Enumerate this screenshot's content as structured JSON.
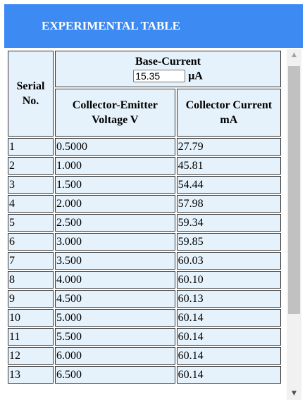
{
  "title": "EXPERIMENTAL TABLE",
  "headers": {
    "serial": "Serial No.",
    "base_current": "Base-Current",
    "base_current_unit": "μA",
    "voltage": "Collector-Emitter Voltage V",
    "current": "Collector Current mA"
  },
  "base_current_value": "15.35",
  "rows": [
    {
      "serial": "1",
      "voltage": "0.5000",
      "current": "27.79"
    },
    {
      "serial": "2",
      "voltage": "1.000",
      "current": "45.81"
    },
    {
      "serial": "3",
      "voltage": "1.500",
      "current": "54.44"
    },
    {
      "serial": "4",
      "voltage": "2.000",
      "current": "57.98"
    },
    {
      "serial": "5",
      "voltage": "2.500",
      "current": "59.34"
    },
    {
      "serial": "6",
      "voltage": "3.000",
      "current": "59.85"
    },
    {
      "serial": "7",
      "voltage": "3.500",
      "current": "60.03"
    },
    {
      "serial": "8",
      "voltage": "4.000",
      "current": "60.10"
    },
    {
      "serial": "9",
      "voltage": "4.500",
      "current": "60.13"
    },
    {
      "serial": "10",
      "voltage": "5.000",
      "current": "60.14"
    },
    {
      "serial": "11",
      "voltage": "5.500",
      "current": "60.14"
    },
    {
      "serial": "12",
      "voltage": "6.000",
      "current": "60.14"
    },
    {
      "serial": "13",
      "voltage": "6.500",
      "current": "60.14"
    }
  ],
  "icons": {
    "scroll_up": "scroll-up-arrow-icon",
    "scroll_down": "scroll-down-arrow-icon"
  },
  "colors": {
    "title_bar": "#3d8bf2",
    "cell_background": "#e6f2fb"
  }
}
